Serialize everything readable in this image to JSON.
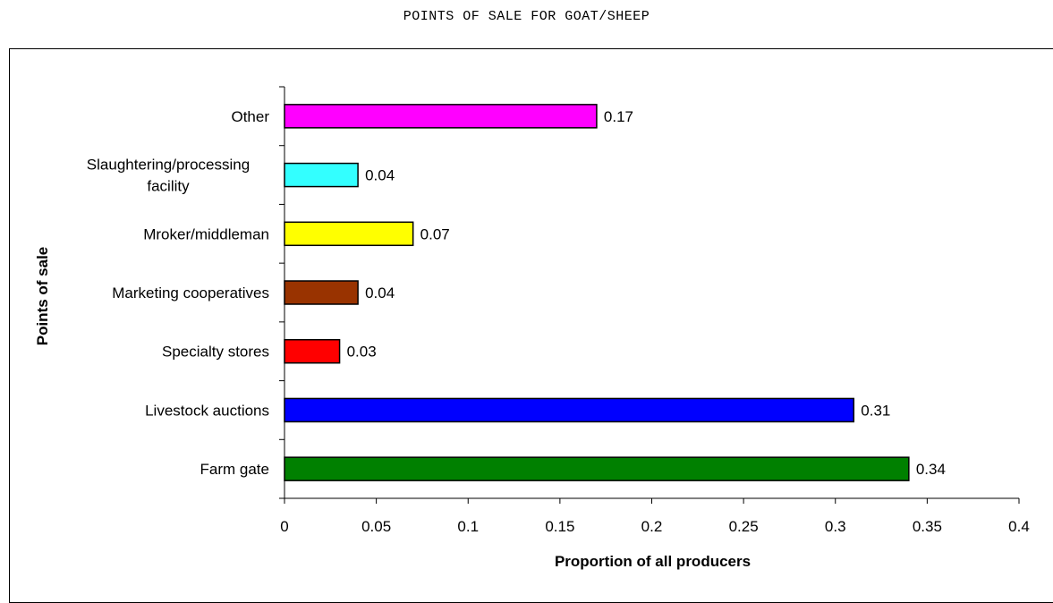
{
  "page_title": "POINTS OF SALE FOR GOAT/SHEEP",
  "chart_data": {
    "type": "bar",
    "orientation": "horizontal",
    "categories": [
      "Farm gate",
      "Livestock auctions",
      "Specialty stores",
      "Marketing cooperatives",
      "Mroker/middleman",
      "Slaughtering/processing facility",
      "Other"
    ],
    "category_label_lines": [
      [
        "Farm gate"
      ],
      [
        "Livestock auctions"
      ],
      [
        "Specialty stores"
      ],
      [
        "Marketing cooperatives"
      ],
      [
        "Mroker/middleman"
      ],
      [
        "Slaughtering/processing",
        "facility"
      ],
      [
        "Other"
      ]
    ],
    "values": [
      0.34,
      0.31,
      0.03,
      0.04,
      0.07,
      0.04,
      0.17
    ],
    "data_labels": [
      "0.34",
      "0.31",
      "0.03",
      "0.04",
      "0.07",
      "0.04",
      "0.17"
    ],
    "colors": [
      "#008000",
      "#0000ff",
      "#ff0000",
      "#993300",
      "#ffff00",
      "#33ffff",
      "#ff00ff"
    ],
    "xlabel": "Proportion of all producers",
    "ylabel": "Points of sale",
    "xlim": [
      0,
      0.4
    ],
    "xticks": [
      0,
      0.05,
      0.1,
      0.15,
      0.2,
      0.25,
      0.3,
      0.35,
      0.4
    ],
    "xtick_labels": [
      "0",
      "0.05",
      "0.1",
      "0.15",
      "0.2",
      "0.25",
      "0.3",
      "0.35",
      "0.4"
    ],
    "grid": false,
    "legend": "none"
  }
}
